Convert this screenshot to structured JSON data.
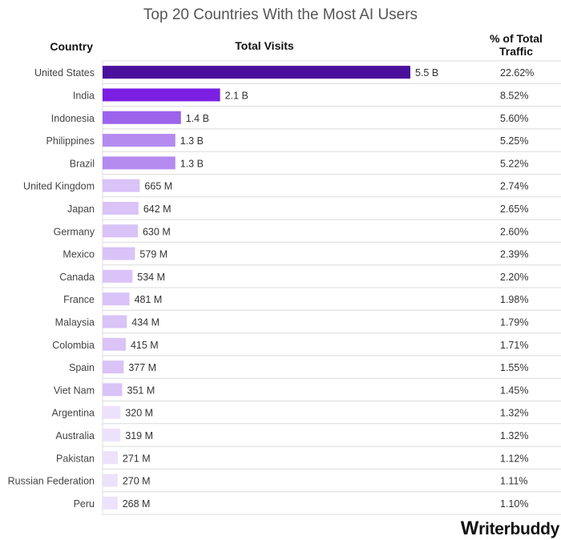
{
  "chart_data": {
    "type": "bar",
    "title": "Top 20 Countries With the Most AI Users",
    "column_headers": {
      "country": "Country",
      "visits": "Total Visits",
      "share": "% of Total Traffic"
    },
    "categories": [
      "United States",
      "India",
      "Indonesia",
      "Philippines",
      "Brazil",
      "United Kingdom",
      "Japan",
      "Germany",
      "Mexico",
      "Canada",
      "France",
      "Malaysia",
      "Colombia",
      "Spain",
      "Viet Nam",
      "Argentina",
      "Australia",
      "Pakistan",
      "Russian Federation",
      "Peru"
    ],
    "values": [
      5500,
      2100,
      1400,
      1300,
      1300,
      665,
      642,
      630,
      579,
      534,
      481,
      434,
      415,
      377,
      351,
      320,
      319,
      271,
      270,
      268
    ],
    "value_labels": [
      "5.5 B",
      "2.1 B",
      "1.4 B",
      "1.3 B",
      "1.3 B",
      "665 M",
      "642 M",
      "630 M",
      "579 M",
      "534 M",
      "481 M",
      "434 M",
      "415 M",
      "377 M",
      "351 M",
      "320 M",
      "319 M",
      "271 M",
      "270 M",
      "268 M"
    ],
    "share_labels": [
      "22.62%",
      "8.52%",
      "5.60%",
      "5.25%",
      "5.22%",
      "2.74%",
      "2.65%",
      "2.60%",
      "2.39%",
      "2.20%",
      "1.98%",
      "1.79%",
      "1.71%",
      "1.55%",
      "1.45%",
      "1.32%",
      "1.32%",
      "1.12%",
      "1.11%",
      "1.10%"
    ],
    "value_unit": "millions of visits",
    "bar_colors": [
      "#4a0f9c",
      "#7b1fe3",
      "#9d63ec",
      "#b58bf0",
      "#b58bf0",
      "#d9c3f7",
      "#d9c3f7",
      "#d9c3f7",
      "#d9c3f7",
      "#d9c3f7",
      "#d9c3f7",
      "#d9c3f7",
      "#d9c3f7",
      "#d9c3f7",
      "#d9c3f7",
      "#ede2fb",
      "#ede2fb",
      "#ede2fb",
      "#ede2fb",
      "#ede2fb"
    ],
    "grid": "horizontal row dividers"
  },
  "brand": {
    "logo_initial": "W",
    "logo_rest": "riterbuddy"
  }
}
